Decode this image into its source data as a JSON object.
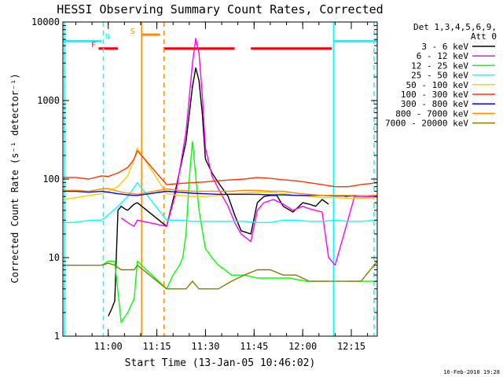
{
  "chart_data": {
    "type": "line",
    "title": "HESSI Observing Summary Count Rates, Corrected",
    "ylabel": "Corrected Count Rate (s⁻¹ detector⁻¹)",
    "xlabel": "Start Time (13-Jan-05 10:46:02)",
    "yscale": "log",
    "ylim": [
      1,
      10000
    ],
    "xlim_minutes_after_10_46": [
      0,
      97
    ],
    "y_ticks": [
      "1",
      "10",
      "100",
      "1000",
      "10000"
    ],
    "x_ticks": [
      {
        "label": "11:00",
        "t": 14
      },
      {
        "label": "11:15",
        "t": 29
      },
      {
        "label": "11:30",
        "t": 44
      },
      {
        "label": "11:45",
        "t": 59
      },
      {
        "label": "12:00",
        "t": 74
      },
      {
        "label": "12:15",
        "t": 89
      }
    ],
    "legend_title": [
      "Det 1,3,4,5,6,9,",
      "Att 0"
    ],
    "legend_position": "right",
    "series": [
      {
        "name": "3 - 6 keV",
        "color": "#000000",
        "t": [
          0,
          2,
          5,
          8,
          10,
          12,
          14,
          15,
          16,
          17,
          18,
          19,
          20,
          21,
          22,
          23,
          32,
          35,
          38,
          40,
          41,
          42,
          43,
          44,
          46,
          48,
          51,
          53,
          55,
          58,
          60,
          62,
          64,
          66,
          68,
          71,
          74,
          76,
          78,
          80,
          82,
          84,
          87,
          90,
          94,
          97
        ],
        "y": [
          null,
          null,
          null,
          null,
          null,
          null,
          1.8,
          2.2,
          2.8,
          40,
          45,
          42,
          40,
          44,
          48,
          50,
          25,
          80,
          300,
          1500,
          2600,
          1800,
          700,
          180,
          120,
          90,
          60,
          35,
          22,
          20,
          50,
          60,
          62,
          62,
          45,
          38,
          50,
          48,
          45,
          55,
          48,
          null,
          60,
          62,
          60,
          60
        ]
      },
      {
        "name": "6 - 12 keV",
        "color": "#ff00ff",
        "t": [
          18,
          20,
          22,
          23,
          32,
          35,
          38,
          40,
          41,
          42,
          43,
          44,
          46,
          48,
          51,
          53,
          55,
          58,
          60,
          62,
          65,
          68,
          71,
          74,
          76,
          78,
          80,
          82,
          84,
          90,
          94,
          97
        ],
        "y": [
          32,
          28,
          25,
          30,
          25,
          70,
          400,
          3000,
          6200,
          4000,
          1200,
          250,
          110,
          75,
          45,
          28,
          20,
          16,
          40,
          50,
          55,
          48,
          40,
          45,
          42,
          40,
          38,
          10,
          8,
          60,
          60,
          60
        ]
      },
      {
        "name": "12 - 25 keV",
        "color": "#00ff00",
        "t": [
          12,
          14,
          16,
          18,
          20,
          22,
          23,
          32,
          34,
          36,
          37,
          38,
          39,
          40,
          42,
          44,
          46,
          48,
          50,
          52,
          56,
          60,
          65,
          70,
          75,
          78,
          80,
          82,
          84,
          88,
          92,
          97
        ],
        "y": [
          8,
          9,
          9,
          1.5,
          2,
          3,
          9,
          4,
          6,
          8,
          10,
          20,
          100,
          300,
          40,
          13,
          10,
          8,
          7,
          6,
          6,
          5.5,
          5.5,
          5.5,
          5,
          5,
          5,
          5,
          null,
          5,
          5,
          5
        ]
      },
      {
        "name": "25 - 50 keV",
        "color": "#00ffff",
        "t": [
          0,
          3,
          6,
          9,
          12,
          14,
          17,
          20,
          23,
          32,
          36,
          40,
          44,
          48,
          52,
          56,
          60,
          64,
          68,
          72,
          76,
          80,
          84,
          88,
          92,
          97
        ],
        "y": [
          28,
          28,
          29,
          30,
          30,
          35,
          45,
          60,
          90,
          30,
          30,
          29,
          29,
          29,
          29,
          29,
          28,
          28,
          30,
          30,
          29,
          29,
          30,
          29,
          29,
          30
        ]
      },
      {
        "name": "50 - 100 keV",
        "color": "#ffcc00",
        "t": [
          0,
          4,
          8,
          12,
          14,
          17,
          20,
          22,
          23,
          32,
          36,
          40,
          44,
          48,
          52,
          56,
          60,
          64,
          68,
          72,
          76,
          80,
          84,
          88,
          92,
          97
        ],
        "y": [
          55,
          58,
          62,
          65,
          70,
          80,
          110,
          180,
          250,
          65,
          62,
          60,
          60,
          62,
          65,
          66,
          68,
          68,
          65,
          62,
          60,
          58,
          58,
          57,
          57,
          58
        ]
      },
      {
        "name": "100 - 300 keV",
        "color": "#ff3300",
        "t": [
          0,
          4,
          8,
          12,
          14,
          17,
          20,
          22,
          23,
          32,
          36,
          40,
          44,
          48,
          52,
          56,
          60,
          64,
          68,
          72,
          76,
          80,
          84,
          88,
          92,
          97
        ],
        "y": [
          105,
          105,
          100,
          110,
          108,
          120,
          140,
          180,
          230,
          85,
          88,
          90,
          92,
          95,
          98,
          100,
          105,
          102,
          98,
          95,
          90,
          85,
          80,
          80,
          85,
          90
        ]
      },
      {
        "name": "300 - 800 keV",
        "color": "#0000ff",
        "t": [
          0,
          4,
          8,
          12,
          14,
          17,
          20,
          22,
          23,
          32,
          36,
          40,
          44,
          48,
          52,
          56,
          60,
          64,
          68,
          72,
          76,
          80,
          84,
          88,
          92,
          97
        ],
        "y": [
          70,
          70,
          68,
          70,
          68,
          65,
          63,
          62,
          62,
          70,
          68,
          66,
          65,
          64,
          64,
          64,
          64,
          63,
          63,
          62,
          62,
          62,
          61,
          61,
          61,
          62
        ]
      },
      {
        "name": "800 - 7000 keV",
        "color": "#ff8c00",
        "t": [
          0,
          4,
          8,
          12,
          14,
          17,
          20,
          22,
          23,
          32,
          36,
          40,
          44,
          48,
          52,
          56,
          60,
          64,
          68,
          72,
          76,
          80,
          84,
          88,
          92,
          97
        ],
        "y": [
          72,
          72,
          70,
          75,
          76,
          70,
          66,
          65,
          64,
          75,
          72,
          70,
          70,
          70,
          70,
          72,
          72,
          70,
          70,
          66,
          64,
          62,
          62,
          62,
          61,
          62
        ]
      },
      {
        "name": "7000 - 20000 keV",
        "color": "#7f7f00",
        "t": [
          0,
          4,
          8,
          12,
          14,
          16,
          18,
          20,
          22,
          23,
          32,
          36,
          38,
          40,
          42,
          44,
          48,
          52,
          56,
          60,
          64,
          68,
          72,
          76,
          80,
          84,
          88,
          92,
          97
        ],
        "y": [
          8,
          8,
          8,
          8,
          8.5,
          8,
          7,
          7,
          7,
          8,
          4,
          4,
          4,
          5,
          4,
          4,
          4,
          5,
          6,
          7,
          7,
          6,
          6,
          5,
          5,
          5,
          5,
          5,
          9
        ]
      }
    ],
    "annotations": [
      {
        "text": "F",
        "color": "#ff0000",
        "t": 9.5
      },
      {
        "text": "N",
        "color": "#00ffff",
        "t": 13.8
      },
      {
        "text": "S",
        "color": "#ff8c00",
        "t": 21.5
      }
    ],
    "flag_bars": [
      {
        "color": "#00ffff",
        "t0": 0,
        "t1": 12,
        "y": 5700
      },
      {
        "color": "#ff0000",
        "t0": 11,
        "t1": 17,
        "y": 4600
      },
      {
        "color": "#ff8c00",
        "t0": 24.5,
        "t1": 30,
        "y": 6900
      },
      {
        "color": "#ff0000",
        "t0": 31,
        "t1": 53,
        "y": 4600
      },
      {
        "color": "#ff0000",
        "t0": 58,
        "t1": 83,
        "y": 4600
      },
      {
        "color": "#00ffff",
        "t0": 83.5,
        "t1": 97,
        "y": 5700
      }
    ],
    "vlines": [
      {
        "color": "#00ffff",
        "t": 0.5,
        "dashed": false
      },
      {
        "color": "#00ffff",
        "t": 12.5,
        "dashed": true
      },
      {
        "color": "#ff8c00",
        "t": 24.3,
        "dashed": false
      },
      {
        "color": "#ff8c00",
        "t": 31.2,
        "dashed": true
      },
      {
        "color": "#00ffff",
        "t": 83.5,
        "dashed": false
      },
      {
        "color": "#00ffff",
        "t": 96.0,
        "dashed": true
      }
    ]
  },
  "footer_date": "16-Feb-2010 19:28"
}
